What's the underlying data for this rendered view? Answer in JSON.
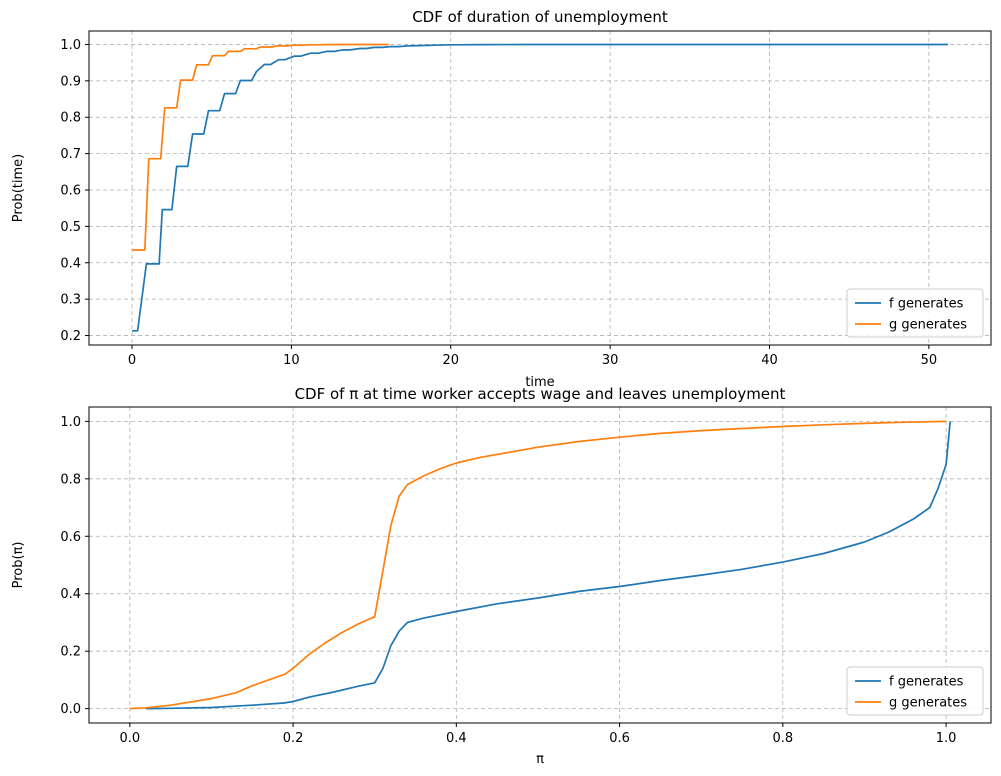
{
  "chart_data": [
    {
      "type": "line",
      "title": "CDF of duration of unemployment",
      "xlabel": "time",
      "ylabel": "Prob(time)",
      "xlim": [
        -2.7,
        53.9
      ],
      "ylim": [
        0.174,
        1.037
      ],
      "xticks": [
        0,
        10,
        20,
        30,
        40,
        50
      ],
      "xtick_labels": [
        "0",
        "10",
        "20",
        "30",
        "40",
        "50"
      ],
      "yticks": [
        0.2,
        0.3,
        0.4,
        0.5,
        0.6,
        0.7,
        0.8,
        0.9,
        1.0
      ],
      "ytick_labels": [
        "0.2",
        "0.3",
        "0.4",
        "0.5",
        "0.6",
        "0.7",
        "0.8",
        "0.9",
        "1.0"
      ],
      "grid": true,
      "legend": "lower-right",
      "series": [
        {
          "name": "f generates",
          "color": "#1f77b4",
          "x": [
            0,
            0.35,
            0.9,
            1.1,
            1.7,
            1.9,
            2.5,
            2.8,
            3.5,
            3.8,
            4.5,
            4.8,
            5.5,
            5.8,
            6.5,
            6.8,
            7.5,
            7.8,
            8.3,
            8.7,
            9.2,
            9.6,
            10.2,
            10.6,
            11.2,
            11.7,
            12.2,
            12.7,
            13.2,
            13.7,
            14.3,
            14.7,
            15.2,
            15.7,
            16.2,
            16.7,
            17.3,
            18,
            19,
            20,
            22,
            25,
            30,
            40,
            51.2
          ],
          "y": [
            0.213,
            0.213,
            0.397,
            0.397,
            0.397,
            0.546,
            0.546,
            0.665,
            0.665,
            0.754,
            0.754,
            0.818,
            0.818,
            0.865,
            0.865,
            0.901,
            0.901,
            0.925,
            0.945,
            0.945,
            0.958,
            0.958,
            0.968,
            0.968,
            0.976,
            0.976,
            0.981,
            0.981,
            0.985,
            0.985,
            0.989,
            0.989,
            0.992,
            0.992,
            0.994,
            0.994,
            0.996,
            0.997,
            0.998,
            0.999,
            0.9995,
            0.9998,
            1.0,
            1.0,
            1.0
          ]
        },
        {
          "name": "g generates",
          "color": "#ff7f0e",
          "x": [
            0,
            0.8,
            1.05,
            1.8,
            2.05,
            2.8,
            3.05,
            3.8,
            4.05,
            4.8,
            5.05,
            5.8,
            6.05,
            6.8,
            7.05,
            7.8,
            8.05,
            8.8,
            9.05,
            9.8,
            10.05,
            10.8,
            11.05,
            11.8,
            12.05,
            13,
            14,
            15,
            16.1
          ],
          "y": [
            0.435,
            0.435,
            0.686,
            0.686,
            0.826,
            0.826,
            0.902,
            0.902,
            0.944,
            0.944,
            0.969,
            0.969,
            0.981,
            0.981,
            0.988,
            0.988,
            0.993,
            0.993,
            0.996,
            0.996,
            0.998,
            0.998,
            0.999,
            0.999,
            0.9995,
            0.9998,
            1.0,
            1.0,
            1.0
          ]
        }
      ]
    },
    {
      "type": "line",
      "title": "CDF of π at time worker accepts wage and leaves unemployment",
      "xlabel": "π",
      "ylabel": "Prob(π)",
      "xlim": [
        -0.05,
        1.055
      ],
      "ylim": [
        -0.05,
        1.05
      ],
      "xticks": [
        0.0,
        0.2,
        0.4,
        0.6,
        0.8,
        1.0
      ],
      "xtick_labels": [
        "0.0",
        "0.2",
        "0.4",
        "0.6",
        "0.8",
        "1.0"
      ],
      "yticks": [
        0.0,
        0.2,
        0.4,
        0.6,
        0.8,
        1.0
      ],
      "ytick_labels": [
        "0.0",
        "0.2",
        "0.4",
        "0.6",
        "0.8",
        "1.0"
      ],
      "grid": true,
      "legend": "lower-right",
      "series": [
        {
          "name": "f generates",
          "color": "#1f77b4",
          "x": [
            0.02,
            0.05,
            0.1,
            0.15,
            0.18,
            0.19,
            0.2,
            0.22,
            0.25,
            0.28,
            0.3,
            0.31,
            0.32,
            0.33,
            0.34,
            0.36,
            0.4,
            0.45,
            0.5,
            0.55,
            0.6,
            0.65,
            0.7,
            0.75,
            0.8,
            0.85,
            0.9,
            0.93,
            0.96,
            0.98,
            0.99,
            1.0,
            1.005
          ],
          "y": [
            0.0,
            0.001,
            0.004,
            0.012,
            0.018,
            0.02,
            0.025,
            0.04,
            0.058,
            0.078,
            0.09,
            0.14,
            0.22,
            0.27,
            0.3,
            0.315,
            0.338,
            0.365,
            0.385,
            0.408,
            0.425,
            0.446,
            0.465,
            0.485,
            0.51,
            0.54,
            0.58,
            0.615,
            0.66,
            0.7,
            0.765,
            0.85,
            1.0
          ]
        },
        {
          "name": "g generates",
          "color": "#ff7f0e",
          "x": [
            0.0,
            0.02,
            0.05,
            0.1,
            0.13,
            0.15,
            0.17,
            0.19,
            0.2,
            0.22,
            0.24,
            0.26,
            0.28,
            0.3,
            0.31,
            0.32,
            0.33,
            0.34,
            0.36,
            0.38,
            0.4,
            0.43,
            0.46,
            0.5,
            0.55,
            0.6,
            0.65,
            0.7,
            0.75,
            0.8,
            0.85,
            0.9,
            0.95,
            1.0
          ],
          "y": [
            0.0,
            0.003,
            0.012,
            0.035,
            0.055,
            0.08,
            0.1,
            0.12,
            0.14,
            0.19,
            0.23,
            0.265,
            0.295,
            0.32,
            0.48,
            0.64,
            0.74,
            0.78,
            0.81,
            0.835,
            0.855,
            0.875,
            0.89,
            0.91,
            0.93,
            0.945,
            0.958,
            0.968,
            0.975,
            0.982,
            0.988,
            0.993,
            0.997,
            1.0
          ]
        }
      ]
    }
  ]
}
